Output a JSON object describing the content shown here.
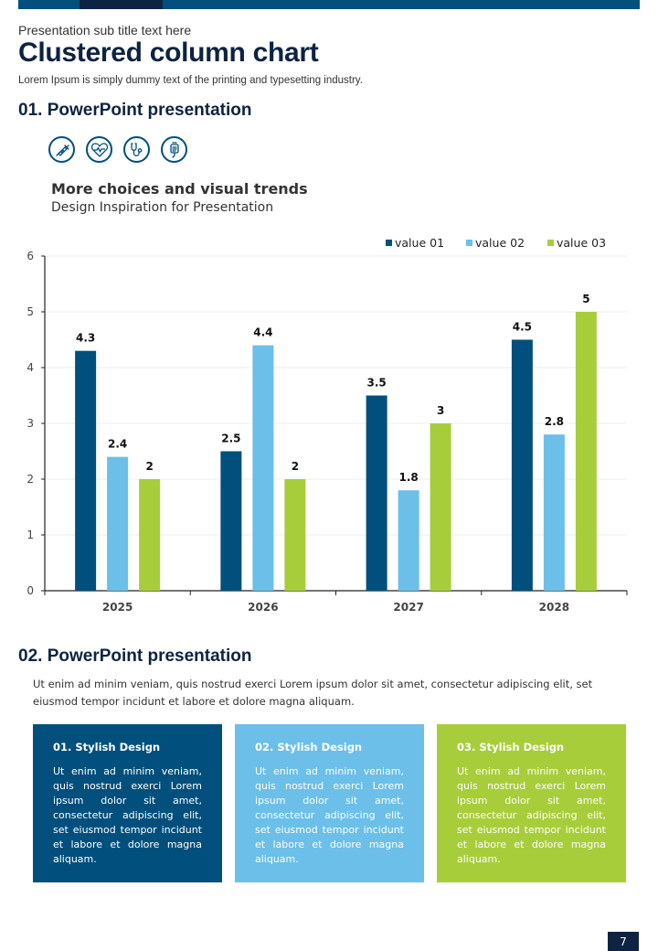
{
  "header": {
    "subtitle": "Presentation sub title text here",
    "title": "Clustered column chart",
    "lead": "Lorem Ipsum is simply dummy text of the printing and typesetting industry."
  },
  "section1": {
    "heading": "01. PowerPoint presentation",
    "icons": [
      "syringe-icon",
      "heart-pulse-icon",
      "stethoscope-icon",
      "iv-bag-icon"
    ],
    "chart_heading": "More choices and visual trends",
    "chart_subheading": "Design Inspiration for Presentation"
  },
  "chart_data": {
    "type": "bar",
    "title": "More choices and visual trends",
    "subtitle": "Design Inspiration for Presentation",
    "categories": [
      "2025",
      "2026",
      "2027",
      "2028"
    ],
    "series": [
      {
        "name": "value 01",
        "color": "#004f7c",
        "values": [
          4.3,
          2.5,
          3.5,
          4.5
        ]
      },
      {
        "name": "value 02",
        "color": "#6bbfe9",
        "values": [
          2.4,
          4.4,
          1.8,
          2.8
        ]
      },
      {
        "name": "value 03",
        "color": "#a8cd3a",
        "values": [
          2,
          2,
          3,
          5
        ]
      }
    ],
    "xlabel": "",
    "ylabel": "",
    "ylim": [
      0,
      6
    ],
    "yticks": [
      0,
      1,
      2,
      3,
      4,
      5,
      6
    ],
    "grid": true,
    "legend": "top-right",
    "data_labels": true
  },
  "section2": {
    "heading": "02. PowerPoint presentation",
    "paragraph": "Ut enim ad minim veniam, quis nostrud exerci  Lorem ipsum dolor sit amet, consectetur adipiscing elit, set eiusmod tempor incidunt et labore et dolore magna aliquam.",
    "cards": [
      {
        "title": "01. Stylish Design",
        "body": "Ut enim ad minim veniam, quis nostrud exerci  Lorem ipsum dolor sit amet, consectetur adipiscing elit, set eiusmod tempor incidunt et labore et dolore magna aliquam.",
        "color": "#004f7c"
      },
      {
        "title": "02. Stylish Design",
        "body": "Ut enim ad minim veniam, quis nostrud exerci  Lorem ipsum dolor sit amet, consectetur adipiscing elit, set eiusmod tempor incidunt et labore et dolore magna aliquam.",
        "color": "#6bbfe9"
      },
      {
        "title": "03. Stylish Design",
        "body": "Ut enim ad minim veniam, quis nostrud exerci  Lorem ipsum dolor sit amet, consectetur adipiscing elit, set eiusmod tempor incidunt et labore et dolore magna aliquam.",
        "color": "#a8cd3a"
      }
    ]
  },
  "footer": {
    "page_number": "7"
  }
}
